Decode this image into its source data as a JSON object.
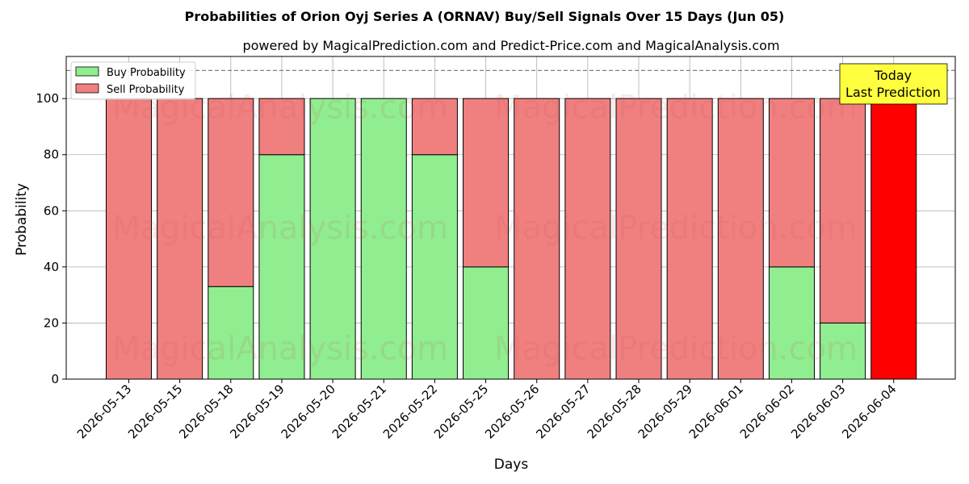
{
  "colors": {
    "buy": "#90ee90",
    "sell": "#f08080",
    "today": "#ff0000",
    "annotation_bg": "#ffff40"
  },
  "watermarks": [
    "MagicalAnalysis.com",
    "MagicalPrediction.com"
  ],
  "chart_data": {
    "type": "bar",
    "stacked": true,
    "title": "Probabilities of Orion Oyj Series A (ORNAV) Buy/Sell Signals Over 15 Days (Jun 05)",
    "subtitle": "powered by MagicalPrediction.com and Predict-Price.com and MagicalAnalysis.com",
    "xlabel": "Days",
    "ylabel": "Probability",
    "ylim": [
      0,
      115
    ],
    "yticks": [
      0,
      20,
      40,
      60,
      80,
      100
    ],
    "grid": true,
    "legend_position": "top-left",
    "reference_line": 110,
    "categories": [
      "2026-05-13",
      "2026-05-15",
      "2026-05-18",
      "2026-05-19",
      "2026-05-20",
      "2026-05-21",
      "2026-05-22",
      "2026-05-25",
      "2026-05-26",
      "2026-05-27",
      "2026-05-28",
      "2026-05-29",
      "2026-06-01",
      "2026-06-02",
      "2026-06-03",
      "2026-06-04"
    ],
    "series": [
      {
        "name": "Buy Probability",
        "values": [
          0,
          0,
          33,
          80,
          100,
          100,
          80,
          40,
          0,
          0,
          0,
          0,
          0,
          40,
          20,
          0
        ]
      },
      {
        "name": "Sell Probability",
        "values": [
          100,
          100,
          67,
          20,
          0,
          0,
          20,
          60,
          100,
          100,
          100,
          100,
          100,
          60,
          80,
          100
        ]
      }
    ],
    "annotation": {
      "lines": [
        "Today",
        "Last Prediction"
      ],
      "category_index": 15
    }
  }
}
